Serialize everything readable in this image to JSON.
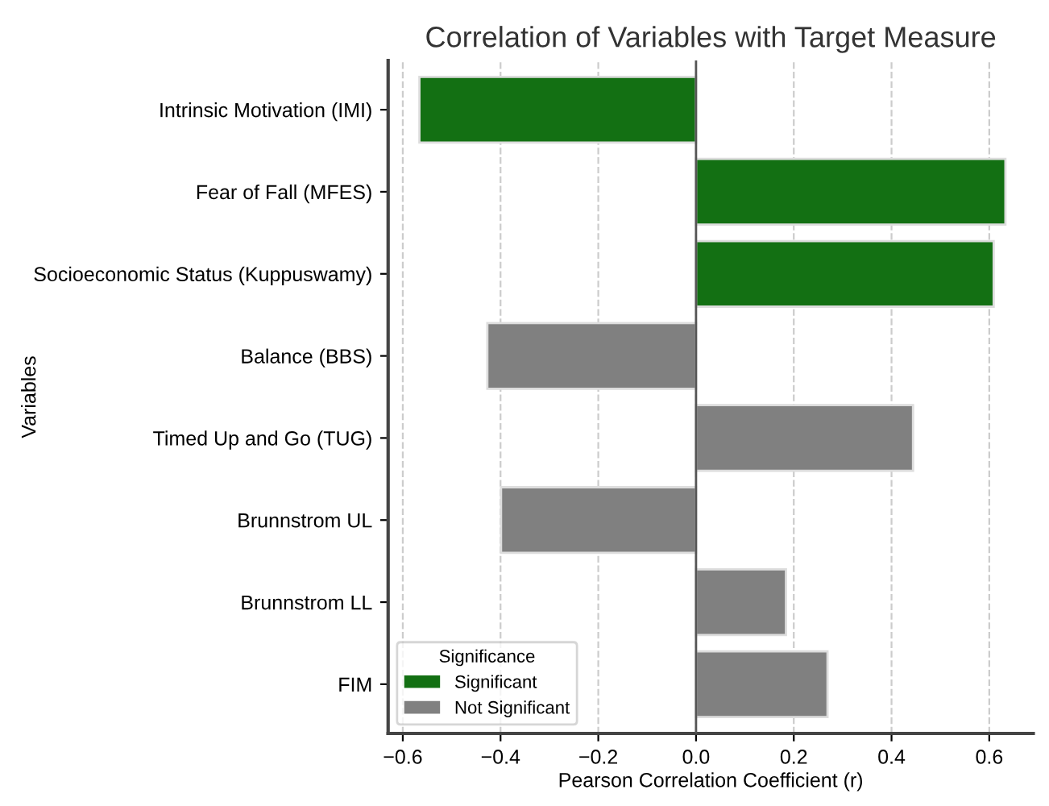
{
  "chart_data": {
    "type": "bar",
    "orientation": "horizontal",
    "title": "Correlation of Variables with Target Measure",
    "xlabel": "Pearson Correlation Coefficient (r)",
    "ylabel": "Variables",
    "legend_title": "Significance",
    "categories": [
      "Intrinsic Motivation (IMI)",
      "Fear of Fall (MFES)",
      "Socioeconomic Status (Kuppuswamy)",
      "Balance (BBS)",
      "Timed Up and Go (TUG)",
      "Brunnstrom UL",
      "Brunnstrom LL",
      "FIM"
    ],
    "series": [
      {
        "name": "Significant",
        "color": "#137013",
        "values": [
          -0.566,
          0.633,
          0.609,
          null,
          null,
          null,
          null,
          null
        ]
      },
      {
        "name": "Not Significant",
        "color": "#808080",
        "values": [
          null,
          null,
          null,
          -0.427,
          0.444,
          -0.399,
          0.184,
          0.269
        ]
      }
    ],
    "xlim": [
      -0.63,
      0.69
    ],
    "xticks": [
      {
        "value": -0.6,
        "label": "−0.6"
      },
      {
        "value": -0.4,
        "label": "−0.4"
      },
      {
        "value": -0.2,
        "label": "−0.2"
      },
      {
        "value": 0,
        "label": "0.0"
      },
      0.2,
      0.4,
      0.6
    ],
    "ref_lines": [
      {
        "axis": "x",
        "value": 0,
        "color": "#555555",
        "line_style": "solid"
      }
    ],
    "grid": "x",
    "legend": "bottom left"
  }
}
